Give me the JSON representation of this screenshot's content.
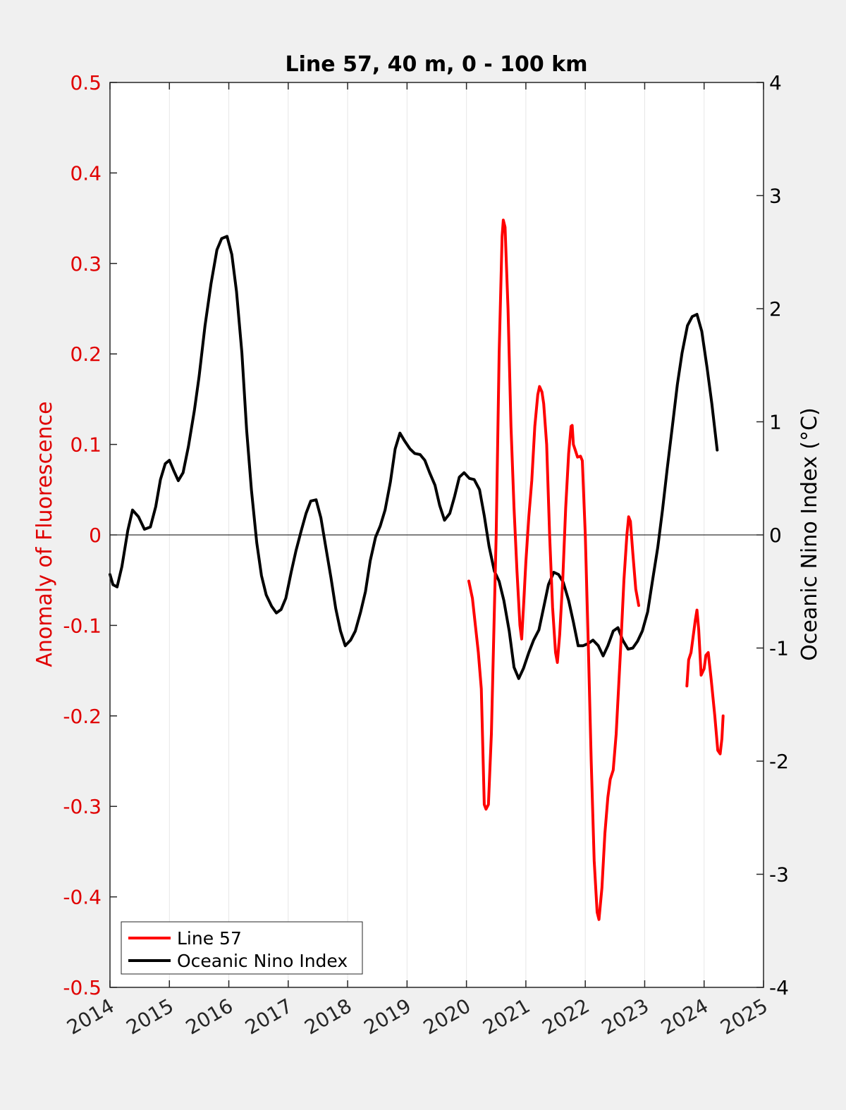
{
  "chart_data": {
    "type": "line",
    "title": "Line 57, 40 m, 0 - 100 km",
    "xlabel": "",
    "ylabel_left": "Anomaly of Fluorescence",
    "ylabel_right": "Oceanic Nino Index (°C)",
    "xlim": [
      2014,
      2025
    ],
    "ylim_left": [
      -0.5,
      0.5
    ],
    "ylim_right": [
      -4,
      4
    ],
    "x_ticks": [
      "2014",
      "2015",
      "2016",
      "2017",
      "2018",
      "2019",
      "2020",
      "2021",
      "2022",
      "2023",
      "2024",
      "2025"
    ],
    "y_left_ticks": [
      "-0.5",
      "-0.4",
      "-0.3",
      "-0.2",
      "-0.1",
      "0",
      "0.1",
      "0.2",
      "0.3",
      "0.4",
      "0.5"
    ],
    "y_right_ticks": [
      "-4",
      "-3",
      "-2",
      "-1",
      "0",
      "1",
      "2",
      "3",
      "4"
    ],
    "grid": "vertical",
    "zero_line": true,
    "legend_position": "bottom-left",
    "colors": {
      "left_axis": "#e00000",
      "line57": "#ff0000",
      "oni": "#000000",
      "axes_bg": "#ffffff",
      "figure_bg": "#f0f0f0"
    },
    "series": [
      {
        "name": "Line 57",
        "axis": "left",
        "color": "#ff0000",
        "segments": [
          [
            [
              2020.04,
              -0.051
            ],
            [
              2020.1,
              -0.07
            ],
            [
              2020.2,
              -0.13
            ],
            [
              2020.25,
              -0.17
            ],
            [
              2020.3,
              -0.298
            ],
            [
              2020.33,
              -0.303
            ],
            [
              2020.37,
              -0.298
            ],
            [
              2020.42,
              -0.22
            ],
            [
              2020.5,
              0.0
            ],
            [
              2020.55,
              0.2
            ],
            [
              2020.6,
              0.33
            ],
            [
              2020.62,
              0.348
            ],
            [
              2020.65,
              0.34
            ],
            [
              2020.7,
              0.25
            ],
            [
              2020.75,
              0.12
            ],
            [
              2020.8,
              0.03
            ],
            [
              2020.85,
              -0.04
            ],
            [
              2020.9,
              -0.1
            ],
            [
              2020.93,
              -0.115
            ],
            [
              2020.96,
              -0.08
            ],
            [
              2021.0,
              -0.03
            ],
            [
              2021.05,
              0.02
            ],
            [
              2021.1,
              0.06
            ],
            [
              2021.15,
              0.12
            ],
            [
              2021.2,
              0.155
            ],
            [
              2021.23,
              0.164
            ],
            [
              2021.27,
              0.158
            ],
            [
              2021.3,
              0.145
            ],
            [
              2021.35,
              0.1
            ],
            [
              2021.4,
              0.0
            ],
            [
              2021.45,
              -0.08
            ],
            [
              2021.5,
              -0.13
            ],
            [
              2021.53,
              -0.141
            ],
            [
              2021.57,
              -0.11
            ],
            [
              2021.62,
              -0.05
            ],
            [
              2021.67,
              0.03
            ],
            [
              2021.72,
              0.09
            ],
            [
              2021.76,
              0.12
            ],
            [
              2021.78,
              0.121
            ],
            [
              2021.8,
              0.1
            ],
            [
              2021.83,
              0.094
            ],
            [
              2021.87,
              0.086
            ],
            [
              2021.92,
              0.087
            ],
            [
              2021.95,
              0.082
            ],
            [
              2022.0,
              0.0
            ],
            [
              2022.05,
              -0.12
            ],
            [
              2022.1,
              -0.25
            ],
            [
              2022.15,
              -0.36
            ],
            [
              2022.2,
              -0.417
            ],
            [
              2022.23,
              -0.425
            ],
            [
              2022.28,
              -0.39
            ],
            [
              2022.33,
              -0.33
            ],
            [
              2022.38,
              -0.29
            ],
            [
              2022.42,
              -0.27
            ],
            [
              2022.47,
              -0.26
            ],
            [
              2022.52,
              -0.22
            ],
            [
              2022.6,
              -0.12
            ],
            [
              2022.65,
              -0.05
            ],
            [
              2022.7,
              0.0
            ],
            [
              2022.73,
              0.02
            ],
            [
              2022.76,
              0.015
            ],
            [
              2022.8,
              -0.02
            ],
            [
              2022.85,
              -0.06
            ],
            [
              2022.9,
              -0.078
            ]
          ],
          [
            [
              2023.71,
              -0.167
            ],
            [
              2023.74,
              -0.138
            ],
            [
              2023.78,
              -0.13
            ],
            [
              2023.85,
              -0.095
            ],
            [
              2023.88,
              -0.083
            ],
            [
              2023.91,
              -0.105
            ],
            [
              2023.95,
              -0.155
            ],
            [
              2024.0,
              -0.148
            ],
            [
              2024.03,
              -0.133
            ],
            [
              2024.07,
              -0.13
            ],
            [
              2024.12,
              -0.16
            ],
            [
              2024.18,
              -0.2
            ],
            [
              2024.23,
              -0.238
            ],
            [
              2024.27,
              -0.242
            ],
            [
              2024.3,
              -0.225
            ],
            [
              2024.32,
              -0.2
            ]
          ]
        ]
      },
      {
        "name": "Oceanic Nino Index",
        "axis": "right",
        "color": "#000000",
        "segments": [
          [
            [
              2014.0,
              -0.35
            ],
            [
              2014.05,
              -0.44
            ],
            [
              2014.12,
              -0.46
            ],
            [
              2014.2,
              -0.28
            ],
            [
              2014.3,
              0.04
            ],
            [
              2014.38,
              0.22
            ],
            [
              2014.48,
              0.16
            ],
            [
              2014.58,
              0.05
            ],
            [
              2014.68,
              0.07
            ],
            [
              2014.77,
              0.25
            ],
            [
              2014.85,
              0.49
            ],
            [
              2014.93,
              0.63
            ],
            [
              2015.0,
              0.66
            ],
            [
              2015.08,
              0.56
            ],
            [
              2015.15,
              0.48
            ],
            [
              2015.23,
              0.55
            ],
            [
              2015.32,
              0.78
            ],
            [
              2015.42,
              1.1
            ],
            [
              2015.5,
              1.4
            ],
            [
              2015.6,
              1.85
            ],
            [
              2015.7,
              2.22
            ],
            [
              2015.8,
              2.52
            ],
            [
              2015.88,
              2.62
            ],
            [
              2015.97,
              2.64
            ],
            [
              2016.05,
              2.48
            ],
            [
              2016.13,
              2.15
            ],
            [
              2016.22,
              1.61
            ],
            [
              2016.3,
              0.93
            ],
            [
              2016.38,
              0.4
            ],
            [
              2016.47,
              -0.07
            ],
            [
              2016.55,
              -0.36
            ],
            [
              2016.63,
              -0.53
            ],
            [
              2016.72,
              -0.63
            ],
            [
              2016.8,
              -0.69
            ],
            [
              2016.88,
              -0.66
            ],
            [
              2016.96,
              -0.56
            ],
            [
              2017.05,
              -0.33
            ],
            [
              2017.13,
              -0.14
            ],
            [
              2017.22,
              0.04
            ],
            [
              2017.3,
              0.19
            ],
            [
              2017.38,
              0.3
            ],
            [
              2017.47,
              0.31
            ],
            [
              2017.55,
              0.15
            ],
            [
              2017.63,
              -0.1
            ],
            [
              2017.72,
              -0.38
            ],
            [
              2017.8,
              -0.65
            ],
            [
              2017.88,
              -0.85
            ],
            [
              2017.96,
              -0.98
            ],
            [
              2018.05,
              -0.93
            ],
            [
              2018.13,
              -0.85
            ],
            [
              2018.22,
              -0.68
            ],
            [
              2018.3,
              -0.5
            ],
            [
              2018.38,
              -0.23
            ],
            [
              2018.47,
              -0.02
            ],
            [
              2018.55,
              0.08
            ],
            [
              2018.63,
              0.22
            ],
            [
              2018.72,
              0.47
            ],
            [
              2018.8,
              0.76
            ],
            [
              2018.88,
              0.9
            ],
            [
              2018.96,
              0.83
            ],
            [
              2019.05,
              0.76
            ],
            [
              2019.13,
              0.72
            ],
            [
              2019.22,
              0.71
            ],
            [
              2019.3,
              0.66
            ],
            [
              2019.38,
              0.55
            ],
            [
              2019.47,
              0.44
            ],
            [
              2019.55,
              0.26
            ],
            [
              2019.63,
              0.13
            ],
            [
              2019.72,
              0.19
            ],
            [
              2019.8,
              0.34
            ],
            [
              2019.88,
              0.51
            ],
            [
              2019.96,
              0.55
            ],
            [
              2020.05,
              0.5
            ],
            [
              2020.13,
              0.49
            ],
            [
              2020.22,
              0.4
            ],
            [
              2020.3,
              0.17
            ],
            [
              2020.38,
              -0.1
            ],
            [
              2020.47,
              -0.32
            ],
            [
              2020.55,
              -0.41
            ],
            [
              2020.63,
              -0.58
            ],
            [
              2020.72,
              -0.85
            ],
            [
              2020.8,
              -1.17
            ],
            [
              2020.88,
              -1.27
            ],
            [
              2020.96,
              -1.18
            ],
            [
              2021.05,
              -1.04
            ],
            [
              2021.13,
              -0.93
            ],
            [
              2021.22,
              -0.84
            ],
            [
              2021.3,
              -0.64
            ],
            [
              2021.38,
              -0.44
            ],
            [
              2021.47,
              -0.33
            ],
            [
              2021.55,
              -0.35
            ],
            [
              2021.63,
              -0.42
            ],
            [
              2021.72,
              -0.58
            ],
            [
              2021.8,
              -0.77
            ],
            [
              2021.88,
              -0.98
            ],
            [
              2021.96,
              -0.98
            ],
            [
              2022.05,
              -0.96
            ],
            [
              2022.13,
              -0.93
            ],
            [
              2022.22,
              -0.98
            ],
            [
              2022.3,
              -1.07
            ],
            [
              2022.38,
              -0.98
            ],
            [
              2022.47,
              -0.85
            ],
            [
              2022.55,
              -0.82
            ],
            [
              2022.63,
              -0.93
            ],
            [
              2022.72,
              -1.01
            ],
            [
              2022.8,
              -1.0
            ],
            [
              2022.88,
              -0.94
            ],
            [
              2022.96,
              -0.85
            ],
            [
              2023.05,
              -0.68
            ],
            [
              2023.13,
              -0.41
            ],
            [
              2023.22,
              -0.11
            ],
            [
              2023.3,
              0.22
            ],
            [
              2023.38,
              0.59
            ],
            [
              2023.47,
              0.98
            ],
            [
              2023.55,
              1.33
            ],
            [
              2023.63,
              1.61
            ],
            [
              2023.72,
              1.85
            ],
            [
              2023.8,
              1.93
            ],
            [
              2023.88,
              1.95
            ],
            [
              2023.96,
              1.8
            ],
            [
              2024.05,
              1.48
            ],
            [
              2024.13,
              1.16
            ],
            [
              2024.22,
              0.75
            ]
          ]
        ]
      }
    ]
  }
}
